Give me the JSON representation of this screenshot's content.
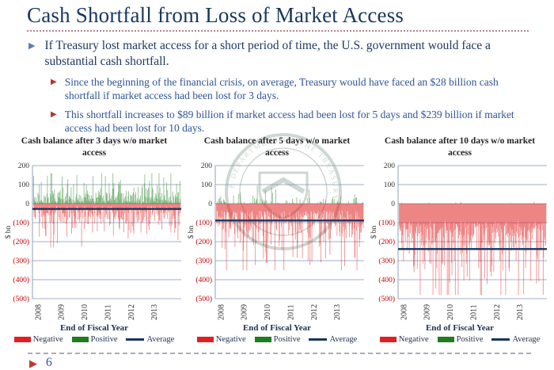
{
  "slide": {
    "title": "Cash Shortfall from Loss of Market Access",
    "page_number": "6"
  },
  "bullets": {
    "main": "If Treasury lost market access for a short period of time, the U.S. government would face a substantial cash shortfall.",
    "sub1": "Since the beginning of the financial crisis, on average, Treasury would have faced an $28 billion cash shortfall if market access had been lost for 3 days.",
    "sub2": "This shortfall increases to $89 billion if market access had been lost for 5 days and $239 billion if market access had been lost for 10 days."
  },
  "watermark": {
    "name": "treasury-seal",
    "ring_text": "THE DEPARTMENT OF THE TREASURY"
  },
  "colors": {
    "title_navy": "#17375E",
    "body_text_navy": "#1F3864",
    "sub_text_blue": "#2E5496",
    "negative_red": "#E02020",
    "positive_green": "#1E7D1E",
    "average_navy": "#17365D",
    "gridline": "#8496B0",
    "negative_tick_red": "#C00000"
  },
  "chart_data": [
    {
      "type": "bar",
      "title": "Cash balance after 3 days w/o market access",
      "ylabel": "$ bn",
      "xlabel": "End of Fiscal Year",
      "x_ticks": [
        "2008",
        "2009",
        "2010",
        "2011",
        "2012",
        "2013"
      ],
      "y_ticks": [
        200,
        100,
        0,
        -100,
        -200,
        -300,
        -400,
        -500
      ],
      "ylim": [
        -500,
        200
      ],
      "legend": [
        "Negative",
        "Positive",
        "Average"
      ],
      "average": -28,
      "positive_max": 160,
      "negative_min": -230,
      "grid": true,
      "gen": {
        "seed": 7,
        "n": 310,
        "pos_prob": 0.85,
        "pos_base": 3,
        "pos_scale": 38,
        "neg_base": 12,
        "neg_scale": 48
      }
    },
    {
      "type": "bar",
      "title": "Cash balance after 5 days w/o market access",
      "ylabel": "$ bn",
      "xlabel": "End of Fiscal Year",
      "x_ticks": [
        "2008",
        "2009",
        "2010",
        "2011",
        "2012",
        "2013"
      ],
      "y_ticks": [
        200,
        100,
        0,
        -100,
        -200,
        -300,
        -400,
        -500
      ],
      "ylim": [
        -500,
        200
      ],
      "legend": [
        "Negative",
        "Positive",
        "Average"
      ],
      "average": -89,
      "positive_max": 95,
      "negative_min": -350,
      "grid": true,
      "gen": {
        "seed": 13,
        "n": 310,
        "pos_prob": 0.22,
        "pos_base": 3,
        "pos_scale": 26,
        "neg_base": 35,
        "neg_scale": 80
      }
    },
    {
      "type": "bar",
      "title": "Cash balance after 10 days w/o market access",
      "ylabel": "$ bn",
      "xlabel": "End of Fiscal Year",
      "x_ticks": [
        "2008",
        "2009",
        "2010",
        "2011",
        "2012",
        "2013"
      ],
      "y_ticks": [
        200,
        100,
        0,
        -100,
        -200,
        -300,
        -400,
        -500
      ],
      "ylim": [
        -500,
        200
      ],
      "legend": [
        "Negative",
        "Positive",
        "Average"
      ],
      "average": -239,
      "positive_max": 12,
      "negative_min": -480,
      "grid": true,
      "gen": {
        "seed": 29,
        "n": 310,
        "pos_prob": 0.03,
        "pos_base": 2,
        "pos_scale": 4,
        "neg_base": 90,
        "neg_scale": 115
      }
    }
  ]
}
